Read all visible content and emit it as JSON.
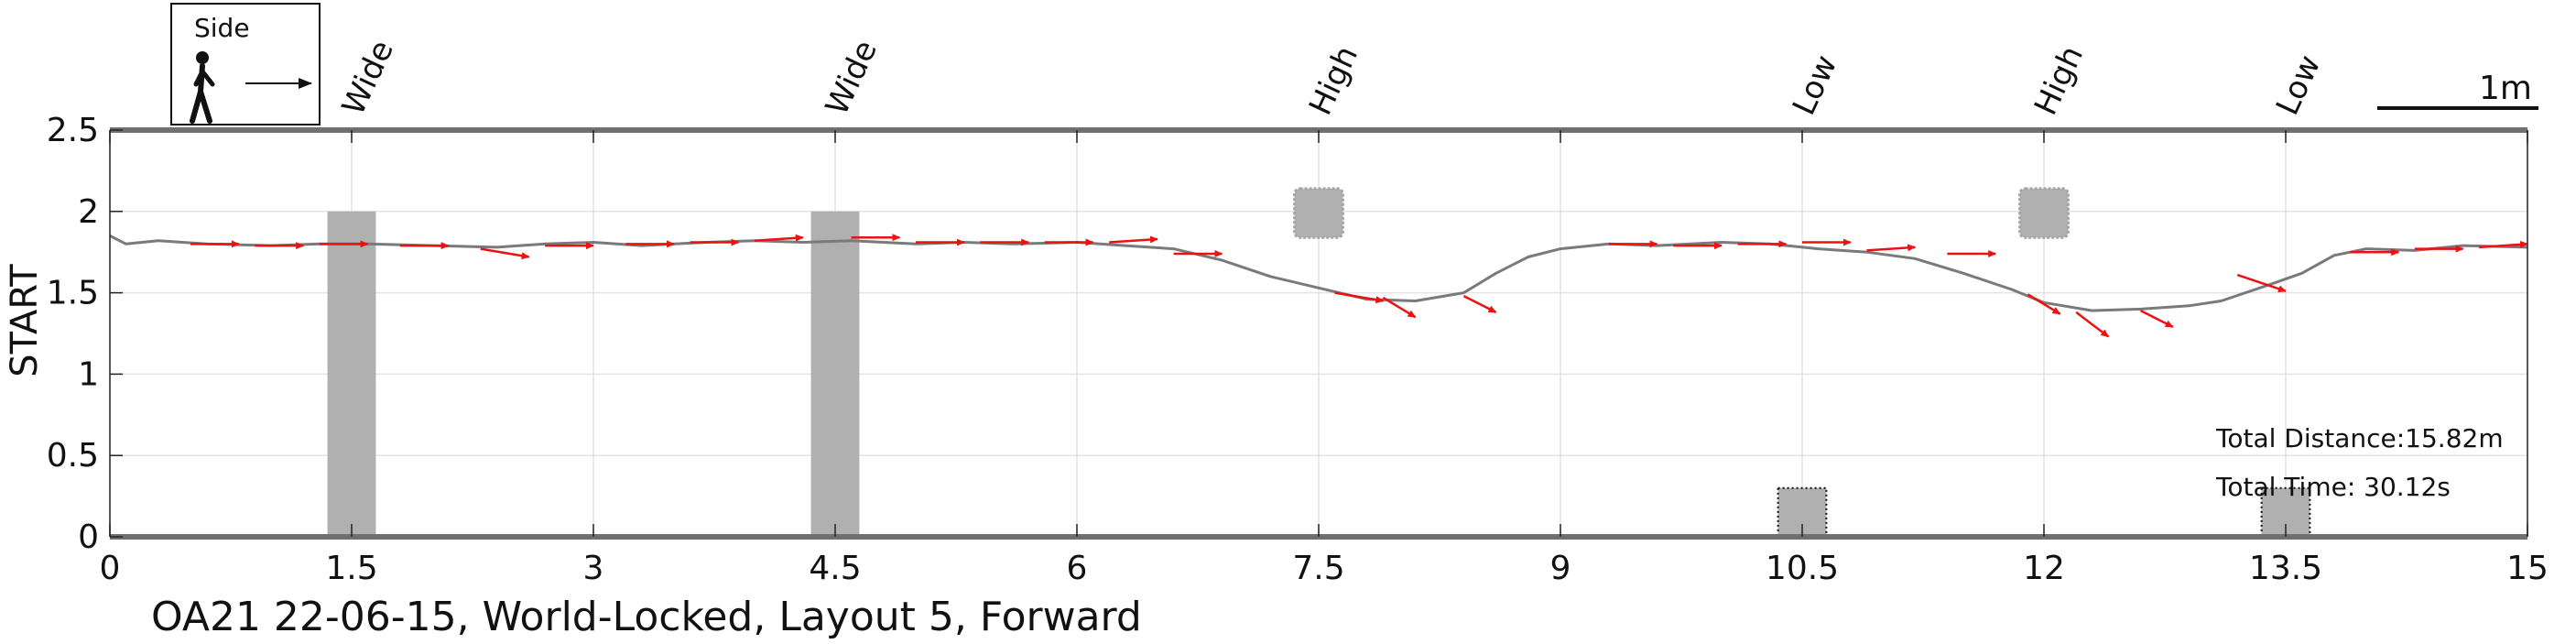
{
  "chart_data": {
    "type": "line",
    "title": "OA21 22-06-15, World-Locked, Layout 5, Forward",
    "xlabel": "",
    "ylabel": "START",
    "xlim": [
      0,
      15
    ],
    "ylim": [
      0,
      2.5
    ],
    "xticks": [
      0,
      1.5,
      3,
      4.5,
      6,
      7.5,
      9,
      10.5,
      12,
      13.5,
      15
    ],
    "xtick_labels": [
      "0",
      "1.5",
      "3",
      "4.5",
      "6",
      "7.5",
      "9",
      "10.5",
      "12",
      "13.5",
      "15"
    ],
    "yticks": [
      0,
      0.5,
      1,
      1.5,
      2,
      2.5
    ],
    "ytick_labels": [
      "0",
      "0.5",
      "1",
      "1.5",
      "2",
      "2.5"
    ],
    "grid": true,
    "legend": {
      "label": "Side",
      "icon": "walking-person-icon",
      "direction": "right-arrow-icon",
      "placement": "top-left"
    },
    "scale_bar": {
      "label": "1m",
      "length": 1
    },
    "series": [
      {
        "color": "#7a7a7a",
        "x": [
          0.0,
          0.1,
          0.3,
          0.6,
          1.0,
          1.3,
          1.6,
          2.0,
          2.4,
          2.7,
          3.0,
          3.3,
          3.7,
          4.0,
          4.3,
          4.6,
          5.0,
          5.3,
          5.6,
          6.0,
          6.3,
          6.6,
          6.9,
          7.2,
          7.5,
          7.8,
          8.1,
          8.4,
          8.6,
          8.8,
          9.0,
          9.3,
          9.6,
          10.0,
          10.3,
          10.6,
          10.9,
          11.2,
          11.5,
          11.8,
          12.0,
          12.3,
          12.6,
          12.9,
          13.1,
          13.4,
          13.6,
          13.8,
          14.0,
          14.3,
          14.6,
          15.0
        ],
        "y": [
          1.85,
          1.8,
          1.82,
          1.8,
          1.79,
          1.8,
          1.8,
          1.79,
          1.78,
          1.8,
          1.81,
          1.79,
          1.81,
          1.82,
          1.81,
          1.82,
          1.8,
          1.81,
          1.8,
          1.81,
          1.79,
          1.77,
          1.7,
          1.6,
          1.53,
          1.46,
          1.45,
          1.5,
          1.62,
          1.72,
          1.77,
          1.8,
          1.79,
          1.81,
          1.8,
          1.77,
          1.75,
          1.71,
          1.62,
          1.52,
          1.44,
          1.39,
          1.4,
          1.42,
          1.45,
          1.55,
          1.62,
          1.73,
          1.77,
          1.76,
          1.79,
          1.78
        ]
      }
    ],
    "arrows": {
      "color": "#ee1111",
      "points": [
        {
          "x": 0.5,
          "y": 1.8,
          "dx": 0.3,
          "dy": 0.0
        },
        {
          "x": 0.9,
          "y": 1.79,
          "dx": 0.3,
          "dy": 0.0
        },
        {
          "x": 1.3,
          "y": 1.8,
          "dx": 0.3,
          "dy": 0.0
        },
        {
          "x": 1.8,
          "y": 1.79,
          "dx": 0.3,
          "dy": 0.0
        },
        {
          "x": 2.3,
          "y": 1.77,
          "dx": 0.3,
          "dy": -0.05
        },
        {
          "x": 2.7,
          "y": 1.79,
          "dx": 0.3,
          "dy": 0.0
        },
        {
          "x": 3.2,
          "y": 1.8,
          "dx": 0.3,
          "dy": 0.0
        },
        {
          "x": 3.6,
          "y": 1.81,
          "dx": 0.3,
          "dy": 0.0
        },
        {
          "x": 4.0,
          "y": 1.82,
          "dx": 0.3,
          "dy": 0.02
        },
        {
          "x": 4.6,
          "y": 1.84,
          "dx": 0.3,
          "dy": 0.0
        },
        {
          "x": 5.0,
          "y": 1.81,
          "dx": 0.3,
          "dy": 0.0
        },
        {
          "x": 5.4,
          "y": 1.81,
          "dx": 0.3,
          "dy": 0.0
        },
        {
          "x": 5.8,
          "y": 1.81,
          "dx": 0.3,
          "dy": 0.0
        },
        {
          "x": 6.2,
          "y": 1.81,
          "dx": 0.3,
          "dy": 0.02
        },
        {
          "x": 6.6,
          "y": 1.74,
          "dx": 0.3,
          "dy": 0.0
        },
        {
          "x": 7.6,
          "y": 1.5,
          "dx": 0.3,
          "dy": -0.05
        },
        {
          "x": 7.9,
          "y": 1.47,
          "dx": 0.2,
          "dy": -0.12
        },
        {
          "x": 8.4,
          "y": 1.48,
          "dx": 0.2,
          "dy": -0.1
        },
        {
          "x": 9.3,
          "y": 1.8,
          "dx": 0.3,
          "dy": 0.0
        },
        {
          "x": 9.7,
          "y": 1.79,
          "dx": 0.3,
          "dy": 0.0
        },
        {
          "x": 10.1,
          "y": 1.8,
          "dx": 0.3,
          "dy": 0.0
        },
        {
          "x": 10.5,
          "y": 1.81,
          "dx": 0.3,
          "dy": 0.0
        },
        {
          "x": 10.9,
          "y": 1.76,
          "dx": 0.3,
          "dy": 0.02
        },
        {
          "x": 11.4,
          "y": 1.74,
          "dx": 0.3,
          "dy": 0.0
        },
        {
          "x": 11.9,
          "y": 1.49,
          "dx": 0.2,
          "dy": -0.12
        },
        {
          "x": 12.2,
          "y": 1.38,
          "dx": 0.2,
          "dy": -0.15
        },
        {
          "x": 12.6,
          "y": 1.39,
          "dx": 0.2,
          "dy": -0.1
        },
        {
          "x": 13.2,
          "y": 1.61,
          "dx": 0.3,
          "dy": -0.1
        },
        {
          "x": 13.9,
          "y": 1.75,
          "dx": 0.3,
          "dy": 0.0
        },
        {
          "x": 14.3,
          "y": 1.77,
          "dx": 0.3,
          "dy": 0.0
        },
        {
          "x": 14.7,
          "y": 1.78,
          "dx": 0.3,
          "dy": 0.02
        }
      ]
    },
    "obstacles": [
      {
        "label": "Wide",
        "x": 1.5,
        "x0": 1.35,
        "x1": 1.65,
        "y0": 0.0,
        "y1": 2.0,
        "style": "solid"
      },
      {
        "label": "Wide",
        "x": 4.5,
        "x0": 4.35,
        "x1": 4.65,
        "y0": 0.0,
        "y1": 2.0,
        "style": "solid"
      },
      {
        "label": "High",
        "x": 7.5,
        "x0": 7.35,
        "x1": 7.65,
        "y0": 1.84,
        "y1": 2.14,
        "style": "fuzzy"
      },
      {
        "label": "Low",
        "x": 10.5,
        "x0": 10.35,
        "x1": 10.65,
        "y0": 0.0,
        "y1": 0.3,
        "style": "dotted"
      },
      {
        "label": "High",
        "x": 12.0,
        "x0": 11.85,
        "x1": 12.15,
        "y0": 1.84,
        "y1": 2.14,
        "style": "fuzzy"
      },
      {
        "label": "Low",
        "x": 13.5,
        "x0": 13.35,
        "x1": 13.65,
        "y0": 0.0,
        "y1": 0.3,
        "style": "dotted"
      }
    ],
    "annotations": [
      {
        "text": "Total Distance:15.82m"
      },
      {
        "text": "Total Time: 30.12s"
      }
    ]
  }
}
